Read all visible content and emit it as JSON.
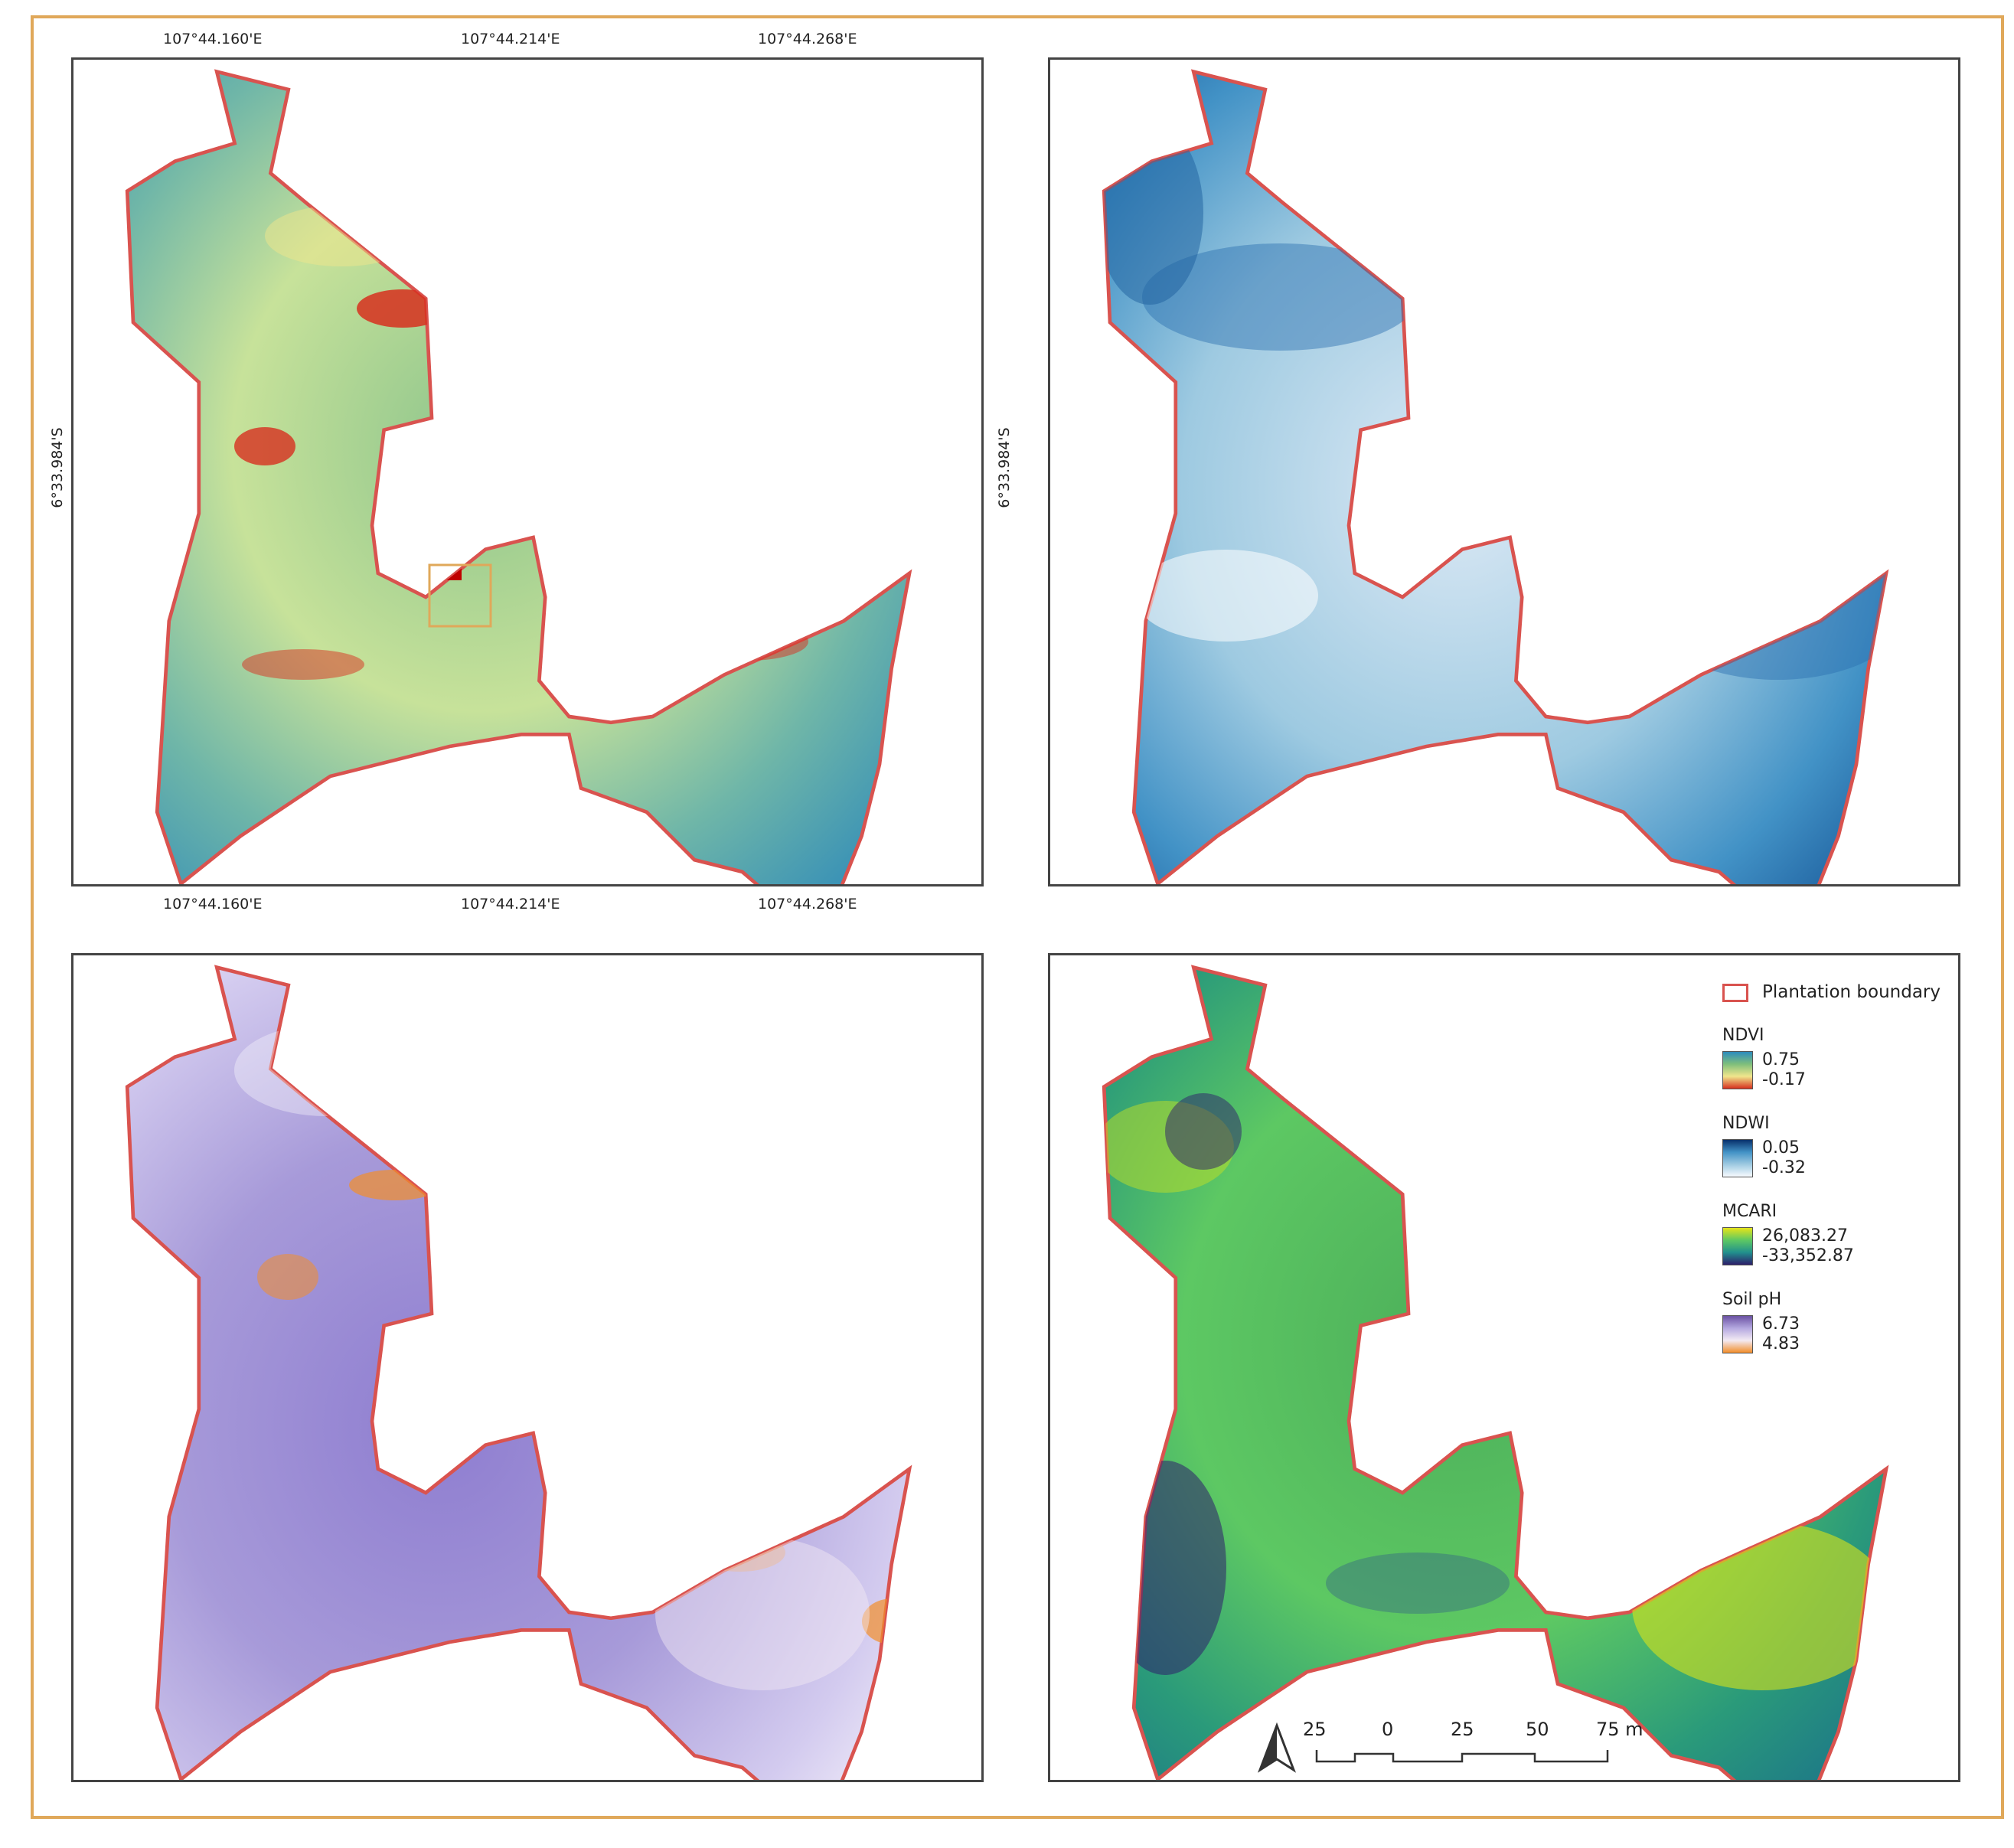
{
  "panels": [
    {
      "id": "ndvi",
      "layer": "NDVI"
    },
    {
      "id": "ndwi",
      "layer": "NDWI"
    },
    {
      "id": "ph",
      "layer": "Soil pH"
    },
    {
      "id": "mcari",
      "layer": "MCARI"
    }
  ],
  "coords": {
    "top": [
      "107°44.160'E",
      "107°44.214'E",
      "107°44.268'E"
    ],
    "bottom": [
      "107°44.160'E",
      "107°44.214'E",
      "107°44.268'E"
    ],
    "left_lat": "6°33.984'S",
    "right_lat": "6°33.984'S"
  },
  "legend": {
    "boundary_label": "Plantation boundary",
    "ndvi": {
      "title": "NDVI",
      "max": "0.75",
      "min": "-0.17"
    },
    "ndwi": {
      "title": "NDWI",
      "max": "0.05",
      "min": "-0.32"
    },
    "mcari": {
      "title": "MCARI",
      "max": "26,083.27",
      "min": "-33,352.87"
    },
    "ph": {
      "title": "Soil pH",
      "max": "6.73",
      "min": "4.83"
    }
  },
  "scalebar": {
    "labels": [
      "25",
      "0",
      "25",
      "50",
      "75 m"
    ]
  },
  "colors": {
    "frame": "#e0a85a",
    "boundary": "#d9534f",
    "ndvi": [
      "#d7301f",
      "#f0e68c",
      "#7fbf7b",
      "#2b8cbe"
    ],
    "ndwi": [
      "#f7fbff",
      "#9ecae1",
      "#4292c6",
      "#08306b"
    ],
    "mcari": [
      "#2d1e6b",
      "#21908d",
      "#5dc863",
      "#e6e419"
    ],
    "ph": [
      "#f28e2b",
      "#f3eaf3",
      "#b4a8e0",
      "#6a51a3"
    ]
  }
}
